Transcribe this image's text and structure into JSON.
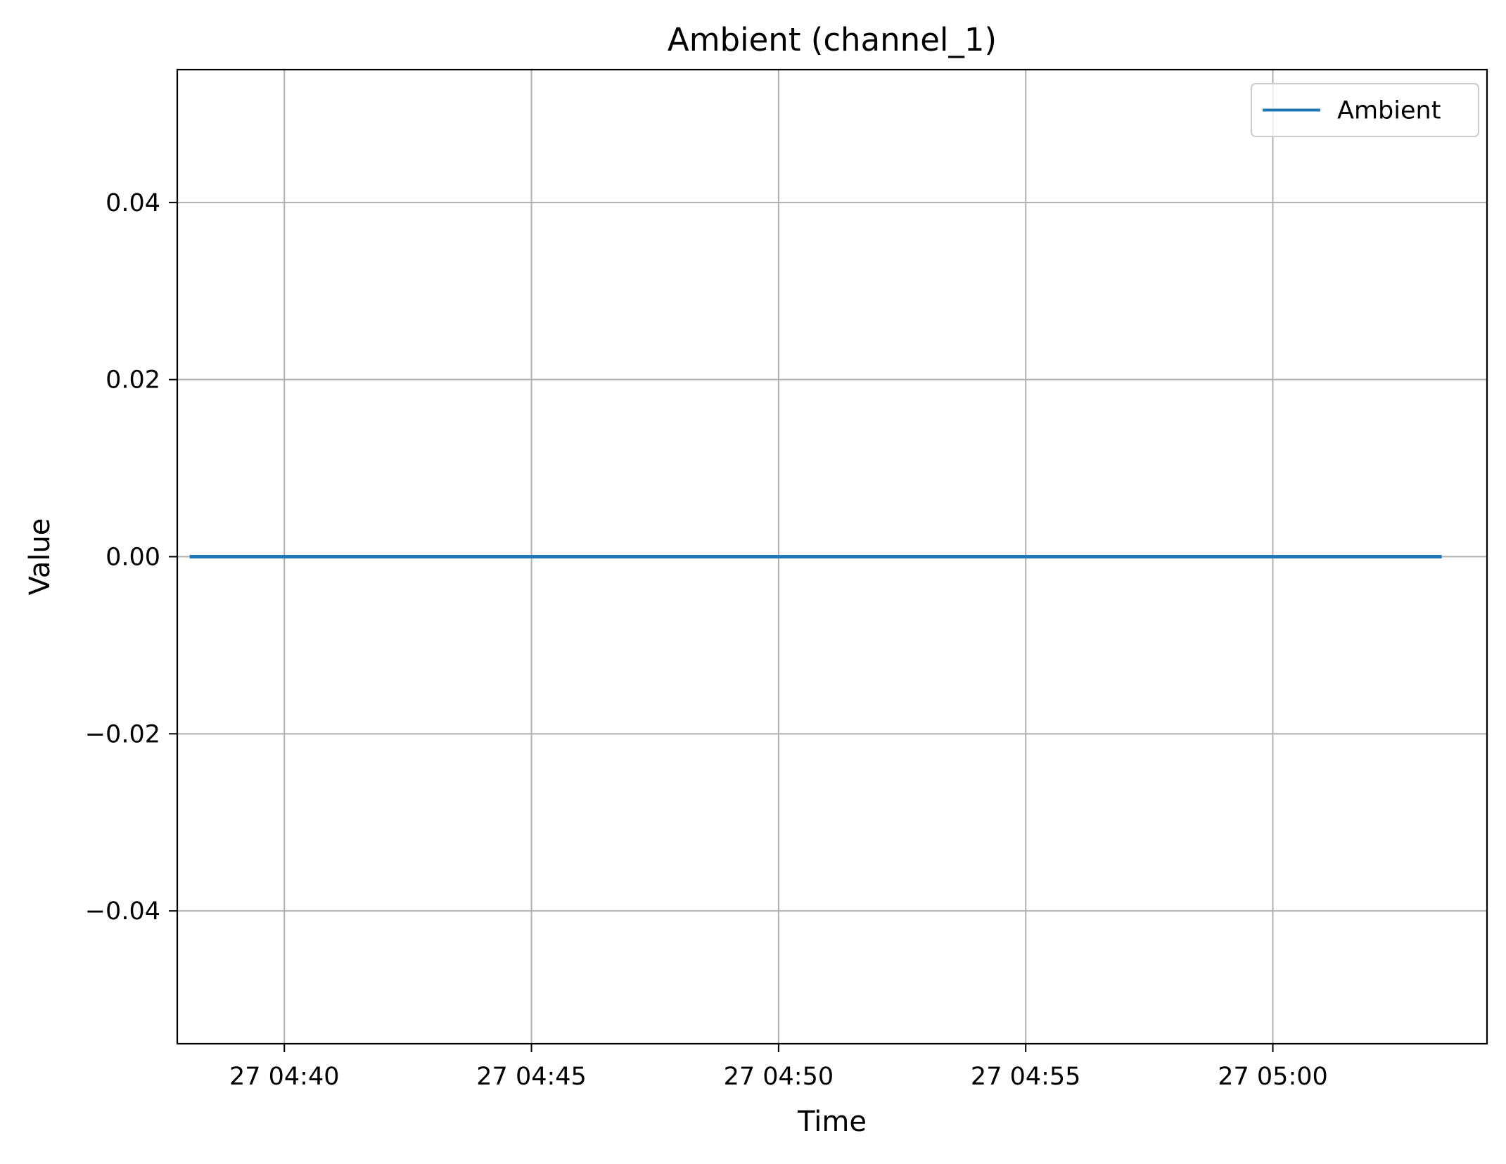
{
  "chart_data": {
    "type": "line",
    "title": "Ambient (channel_1)",
    "xlabel": "Time",
    "ylabel": "Value",
    "x_tick_labels": [
      "27 04:40",
      "27 04:45",
      "27 04:50",
      "27 04:55",
      "27 05:00"
    ],
    "y_tick_labels": [
      "−0.04",
      "−0.02",
      "0.00",
      "0.02",
      "0.04"
    ],
    "x_ticks": [
      "04:40",
      "04:45",
      "04:50",
      "04:55",
      "05:00"
    ],
    "y_ticks": [
      -0.04,
      -0.02,
      0.0,
      0.02,
      0.04
    ],
    "xlim": [
      "04:37:50",
      "05:04:20"
    ],
    "ylim": [
      -0.055,
      0.055
    ],
    "grid": true,
    "legend": "top-right",
    "series": [
      {
        "name": "Ambient",
        "color": "#1f77b4",
        "x": [
          "04:38:05",
          "05:03:25"
        ],
        "y": [
          0.0,
          0.0
        ]
      }
    ]
  }
}
